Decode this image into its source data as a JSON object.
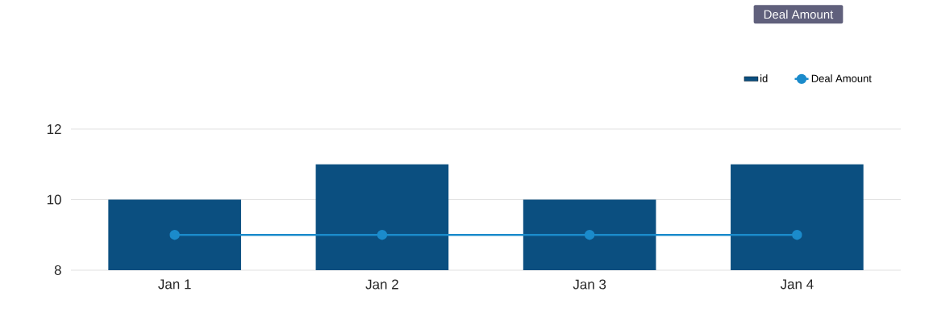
{
  "chart_data": {
    "type": "bar",
    "categories": [
      "Jan 1",
      "Jan 2",
      "Jan 3",
      "Jan 4"
    ],
    "series": [
      {
        "name": "id",
        "color": "#0b4f80",
        "values": [
          10,
          11,
          10,
          11
        ]
      },
      {
        "name": "Deal Amount",
        "type": "line",
        "color": "#1b8bcb",
        "values": [
          9,
          9,
          9,
          9
        ]
      }
    ],
    "ylim": [
      8,
      12
    ],
    "yticks": [
      8,
      10,
      12
    ],
    "grid": "y",
    "legend": "top right",
    "marker": "circle",
    "annotations": [
      "Deal Amount"
    ]
  }
}
